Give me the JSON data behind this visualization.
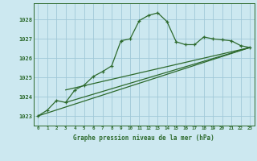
{
  "title": "Graphe pression niveau de la mer (hPa)",
  "background_color": "#cce8f0",
  "grid_color": "#a0c8d8",
  "line_color": "#2d6a2d",
  "xlim": [
    -0.5,
    23.5
  ],
  "ylim": [
    1022.5,
    1028.85
  ],
  "xticks": [
    0,
    1,
    2,
    3,
    4,
    5,
    6,
    7,
    8,
    9,
    10,
    11,
    12,
    13,
    14,
    15,
    16,
    17,
    18,
    19,
    20,
    21,
    22,
    23
  ],
  "yticks": [
    1023,
    1024,
    1025,
    1026,
    1027,
    1028
  ],
  "series1_x": [
    0,
    1,
    2,
    3,
    4,
    5,
    6,
    7,
    8,
    9,
    10,
    11,
    12,
    13,
    14,
    15,
    16,
    17,
    18,
    19,
    20,
    21,
    22,
    23
  ],
  "series1_y": [
    1023.0,
    1023.3,
    1023.8,
    1023.7,
    1024.35,
    1024.6,
    1025.05,
    1025.3,
    1025.6,
    1026.9,
    1027.0,
    1027.95,
    1028.22,
    1028.35,
    1027.9,
    1026.85,
    1026.7,
    1026.7,
    1027.1,
    1027.0,
    1026.95,
    1026.9,
    1026.65,
    1026.55
  ],
  "series2_x": [
    0,
    23
  ],
  "series2_y": [
    1023.0,
    1026.55
  ],
  "series3_x": [
    3,
    23
  ],
  "series3_y": [
    1023.7,
    1026.55
  ],
  "series4_x": [
    3,
    23
  ],
  "series4_y": [
    1024.35,
    1026.55
  ]
}
